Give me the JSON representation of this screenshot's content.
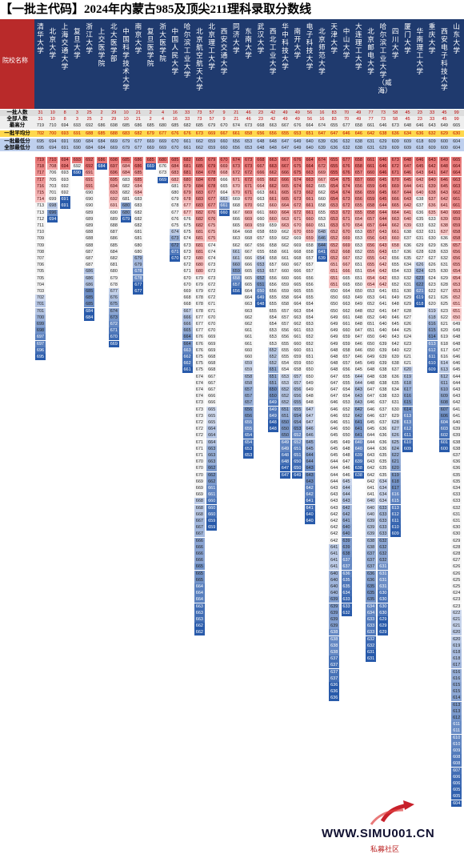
{
  "title": "【一批主代码】2024年内蒙古985及顶尖211理科录取分数线",
  "header_label": "院校名称",
  "row_labels": {
    "plan": "一批人数",
    "total": "全部人数",
    "max": "最高分",
    "avg": "一批平均分",
    "min1": "一批最低分",
    "minall": "全部最低分"
  },
  "universities": [
    "清华大学",
    "北京大学",
    "上海交通大学",
    "复旦大学",
    "浙江大学",
    "上交医学院",
    "北大医学部",
    "中国科学技术大学",
    "南京大学",
    "复旦医学院",
    "浙大医学院",
    "中国人民大学",
    "哈尔滨工业大学",
    "北京航空航天大学",
    "北京理工大学",
    "西安交通大学",
    "同济大学",
    "东南大学",
    "武汉大学",
    "西北工业大学",
    "华中科技大学",
    "南开大学",
    "电子科技大学",
    "北京师范大学",
    "天津大学",
    "中山大学",
    "大连理工大学",
    "北京邮电大学",
    "哈尔滨工业大学（威海）",
    "四川大学",
    "厦门大学",
    "华南理工大学",
    "重庆大学",
    "西安电子科技大学",
    "山东大学"
  ],
  "plan": [
    "31",
    "10",
    "8",
    "3",
    "25",
    "2",
    "29",
    "10",
    "21",
    "2",
    "4",
    "16",
    "33",
    "73",
    "57",
    "9",
    "21",
    "46",
    "23",
    "42",
    "49",
    "49",
    "56",
    "16",
    "83",
    "70",
    "49",
    "77",
    "73",
    "58",
    "45",
    "23",
    "33",
    "45",
    "99"
  ],
  "total": [
    "31",
    "10",
    "8",
    "3",
    "25",
    "2",
    "29",
    "10",
    "21",
    "2",
    "4",
    "16",
    "33",
    "73",
    "57",
    "9",
    "21",
    "46",
    "23",
    "42",
    "49",
    "49",
    "56",
    "16",
    "83",
    "70",
    "49",
    "77",
    "73",
    "58",
    "45",
    "23",
    "33",
    "45",
    "99"
  ],
  "max": [
    "719",
    "710",
    "694",
    "693",
    "692",
    "686",
    "698",
    "685",
    "686",
    "685",
    "680",
    "685",
    "682",
    "685",
    "679",
    "670",
    "674",
    "673",
    "668",
    "663",
    "667",
    "676",
    "664",
    "674",
    "655",
    "677",
    "658",
    "661",
    "646",
    "673",
    "648",
    "646",
    "643",
    "649",
    "665"
  ],
  "avg": [
    "702",
    "700",
    "693",
    "691",
    "688",
    "685",
    "688",
    "683",
    "682",
    "679",
    "677",
    "676",
    "676",
    "673",
    "669",
    "667",
    "661",
    "658",
    "656",
    "656",
    "655",
    "653",
    "651",
    "647",
    "647",
    "646",
    "646",
    "642",
    "638",
    "636",
    "634",
    "636",
    "632",
    "629",
    "630"
  ],
  "min1": [
    "695",
    "694",
    "691",
    "690",
    "684",
    "684",
    "669",
    "679",
    "677",
    "669",
    "669",
    "670",
    "661",
    "662",
    "659",
    "660",
    "656",
    "653",
    "648",
    "648",
    "647",
    "649",
    "640",
    "639",
    "636",
    "632",
    "638",
    "631",
    "629",
    "609",
    "609",
    "618",
    "609",
    "600",
    "604"
  ],
  "minall": [
    "695",
    "694",
    "691",
    "690",
    "684",
    "684",
    "669",
    "679",
    "677",
    "669",
    "669",
    "670",
    "661",
    "662",
    "659",
    "660",
    "656",
    "653",
    "648",
    "648",
    "647",
    "649",
    "640",
    "639",
    "636",
    "632",
    "638",
    "631",
    "629",
    "609",
    "609",
    "618",
    "609",
    "600",
    "604"
  ],
  "colors": {
    "header_bg": "#1f3a6e",
    "label_bg": "#b92a2a",
    "high": "#e05050",
    "low": "#2050a0",
    "mid": "#f2f2f2",
    "avg_row": "#ffd84d"
  },
  "watermark": {
    "brand": "WWW.SIMU001.CN",
    "sub": "私募社区",
    "icon": "rising-arrow-logo"
  }
}
